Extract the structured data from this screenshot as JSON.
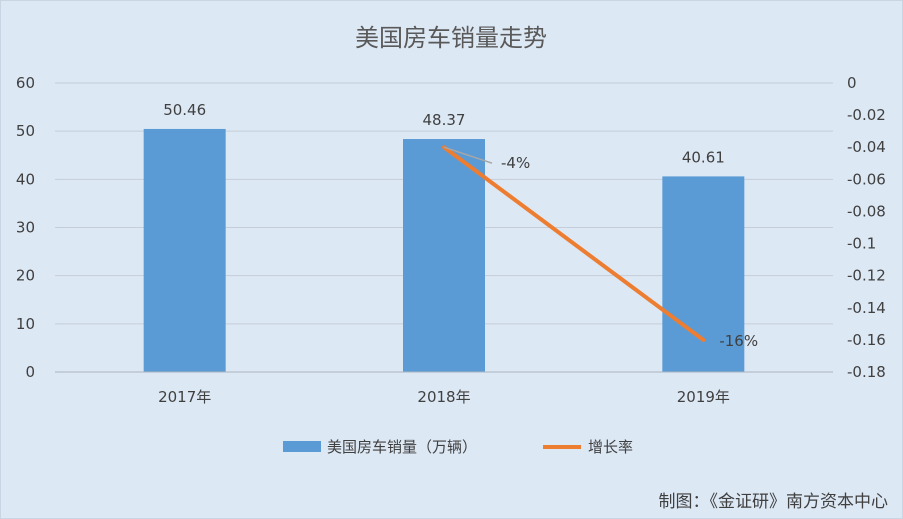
{
  "chart_data": {
    "type": "bar",
    "title": "美国房车销量走势",
    "categories": [
      "2017年",
      "2018年",
      "2019年"
    ],
    "series": [
      {
        "name": "美国房车销量（万辆）",
        "type": "bar",
        "axis": "left",
        "color": "#5b9bd5",
        "values": [
          50.46,
          48.37,
          40.61
        ],
        "labels": [
          "50.46",
          "48.37",
          "40.61"
        ]
      },
      {
        "name": "增长率",
        "type": "line",
        "axis": "right",
        "color": "#ed7d31",
        "values": [
          null,
          -0.04,
          -0.16
        ],
        "labels": [
          "",
          "-4%",
          "-16%"
        ]
      }
    ],
    "y_left": {
      "min": 0,
      "max": 60,
      "ticks": [
        "0",
        "10",
        "20",
        "30",
        "40",
        "50",
        "60"
      ]
    },
    "y_right": {
      "min": -0.18,
      "max": 0,
      "ticks": [
        "0",
        "-0.02",
        "-0.04",
        "-0.06",
        "-0.08",
        "-0.1",
        "-0.12",
        "-0.14",
        "-0.16",
        "-0.18"
      ]
    },
    "grid": true,
    "legend": "bottom"
  },
  "credit": "制图：《金证研》南方资本中心"
}
